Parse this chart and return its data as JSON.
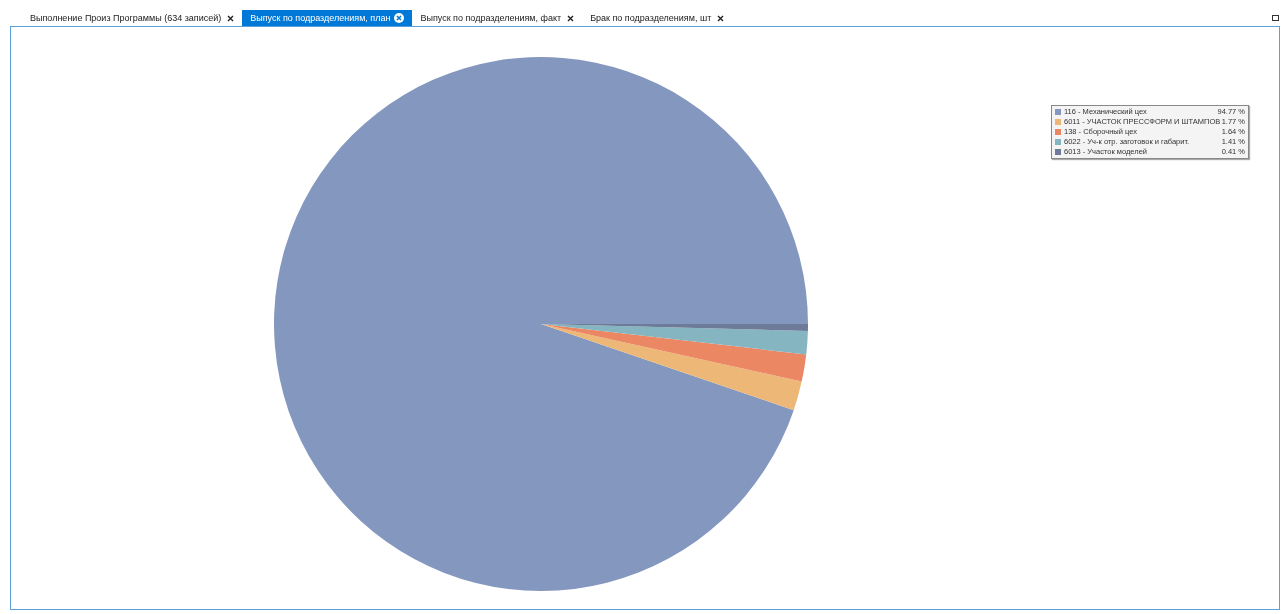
{
  "chart_data": {
    "type": "pie",
    "categories": [
      "116 - Механический цех",
      "6011 - УЧАСТОК ПРЕССФОРМ И ШТАМПОВ",
      "138 - Сборочный цех",
      "6022 - Уч-к отр. заготовок и габарит.",
      "6013 - Участок моделей"
    ],
    "values": [
      94.77,
      1.77,
      1.64,
      1.41,
      0.41
    ],
    "value_labels": [
      "94.77 %",
      "1.77 %",
      "1.64 %",
      "1.41 %",
      "0.41 %"
    ],
    "colors": [
      "#8397bf",
      "#edb877",
      "#ec8763",
      "#84b5c0",
      "#6e7b98"
    ],
    "legend": "top right",
    "annotations": [
      "Выполнение Произ Программы (634 записей)",
      "Выпуск по подразделениям, план",
      "Выпуск по подразделениям, факт",
      "Брак по подразделениям, шт"
    ]
  }
}
